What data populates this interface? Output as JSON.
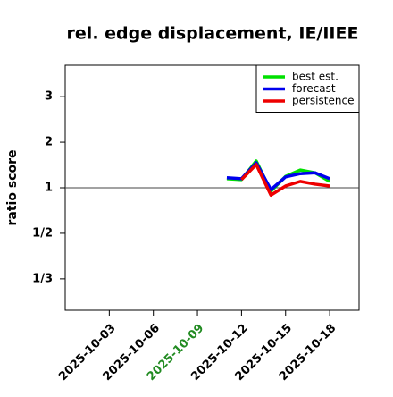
{
  "chart_data": {
    "type": "line",
    "title": "rel. edge displacement, IE/IIEE",
    "y_label": "ratio score",
    "x": [
      "2025-10-11",
      "2025-10-12",
      "2025-10-13",
      "2025-10-14",
      "2025-10-15",
      "2025-10-16",
      "2025-10-17",
      "2025-10-18"
    ],
    "series": [
      {
        "name": "best est.",
        "color": "#00e000",
        "values": [
          1.2,
          1.18,
          1.59,
          0.93,
          1.25,
          1.39,
          1.33,
          1.14
        ]
      },
      {
        "name": "forecast",
        "color": "#0000ee",
        "values": [
          1.22,
          1.2,
          1.55,
          0.96,
          1.24,
          1.31,
          1.33,
          1.2
        ]
      },
      {
        "name": "persistence",
        "color": "#ee0000",
        "values": [
          null,
          1.18,
          1.51,
          0.86,
          1.04,
          1.14,
          1.08,
          1.04
        ]
      }
    ],
    "xlim": [
      "2025-09-30",
      "2025-10-20"
    ],
    "xticks": [
      "2025-10-03",
      "2025-10-06",
      "2025-10-09",
      "2025-10-12",
      "2025-10-15",
      "2025-10-18"
    ],
    "xtick_colors": [
      "#000000",
      "#000000",
      "#228b22",
      "#000000",
      "#000000",
      "#000000"
    ],
    "ylim": [
      0.271,
      3.69
    ],
    "yticks": [
      3,
      2,
      1,
      {
        "value": 0.5,
        "label": "1/2"
      },
      {
        "value": 0.3333,
        "label": "1/3"
      }
    ],
    "reference_line": 1,
    "legend": "top-right"
  }
}
